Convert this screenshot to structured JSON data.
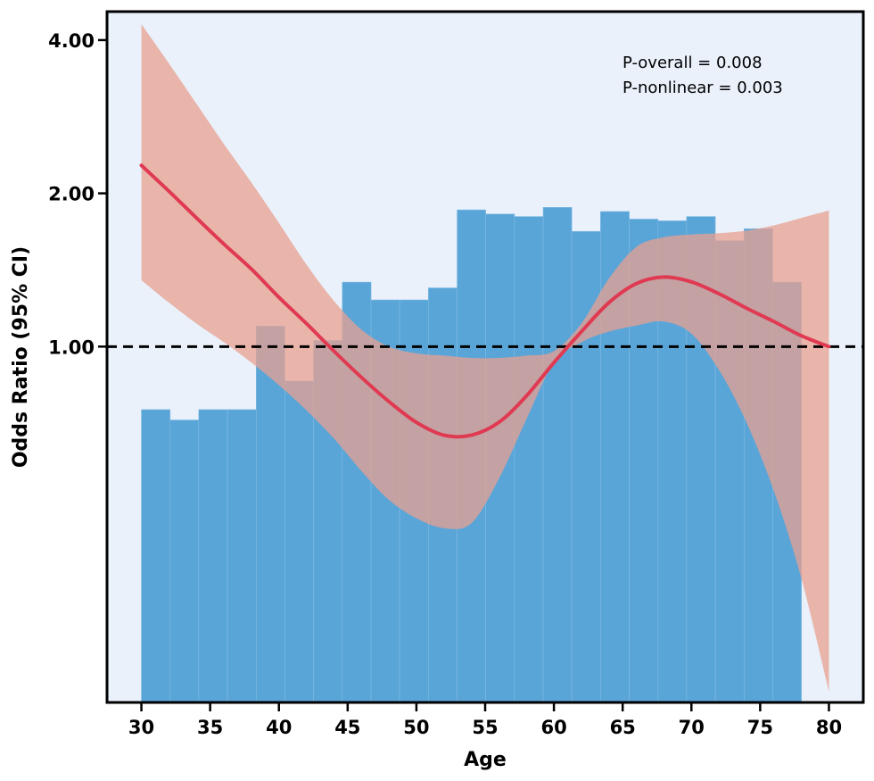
{
  "chart_data": {
    "type": "bar",
    "title": "",
    "xlabel": "Age",
    "ylabel": "Odds Ratio (95% CI)",
    "y_scale": "log",
    "xlim": [
      27.5,
      82.5
    ],
    "ylim": [
      0.2,
      4.55
    ],
    "x_ticks": [
      30,
      35,
      40,
      45,
      50,
      55,
      60,
      65,
      70,
      75,
      80
    ],
    "x_tick_labels": [
      "30",
      "35",
      "40",
      "45",
      "50",
      "55",
      "60",
      "65",
      "70",
      "75",
      "80"
    ],
    "y_ticks": [
      1,
      2,
      4
    ],
    "y_tick_labels": [
      "1.00",
      "2.00",
      "4.00"
    ],
    "reference_line": {
      "y": 1.0,
      "style": "dashed"
    },
    "annotations": [
      "P-overall = 0.008",
      "P-nonlinear = 0.003"
    ],
    "annotation_position": "top-right",
    "grid": false,
    "colors": {
      "histogram": "#5aa5d8",
      "curve": "#e03a52",
      "ci_band": "#e8a090",
      "background": "#eaf1fb",
      "reference": "#000000"
    },
    "histogram": {
      "bin_edges": [
        30.0,
        32.09,
        34.17,
        36.26,
        38.35,
        40.43,
        42.52,
        44.61,
        46.7,
        48.78,
        50.87,
        52.96,
        55.04,
        57.13,
        59.22,
        61.3,
        63.39,
        65.48,
        67.57,
        69.65,
        71.74,
        73.83,
        75.91,
        78.0
      ],
      "counts": [
        8,
        7.5,
        8,
        8,
        13,
        9.5,
        12,
        16.5,
        15,
        15,
        16,
        24,
        23.5,
        23.2,
        24.3,
        21.5,
        23.8,
        22.9,
        22.7,
        23.2,
        20.5,
        21.8,
        16.5
      ],
      "count_at_baseline": 0,
      "baseline_or": 0.2,
      "or_per_count": 0.069
    },
    "series": [
      {
        "name": "",
        "role": "estimate",
        "x": [
          30,
          32,
          34,
          36,
          38,
          40,
          42,
          44,
          46,
          48,
          50,
          52,
          54,
          56,
          58,
          60,
          62,
          64,
          66,
          68,
          70,
          72,
          74,
          76,
          78,
          80
        ],
        "y": [
          2.27,
          2.02,
          1.79,
          1.59,
          1.42,
          1.25,
          1.11,
          0.98,
          0.87,
          0.78,
          0.71,
          0.67,
          0.67,
          0.71,
          0.8,
          0.93,
          1.07,
          1.22,
          1.33,
          1.37,
          1.34,
          1.27,
          1.19,
          1.12,
          1.05,
          1.0
        ]
      },
      {
        "name": "",
        "role": "ci_lower",
        "x": [
          30,
          32,
          34,
          36,
          38,
          40,
          42,
          44,
          46,
          48,
          50,
          52,
          54,
          56,
          58,
          60,
          62,
          64,
          66,
          68,
          70,
          72,
          74,
          76,
          78,
          80
        ],
        "y": [
          1.35,
          1.22,
          1.11,
          1.02,
          0.93,
          0.84,
          0.75,
          0.66,
          0.57,
          0.5,
          0.46,
          0.44,
          0.45,
          0.55,
          0.72,
          0.93,
          1.02,
          1.07,
          1.1,
          1.12,
          1.06,
          0.9,
          0.71,
          0.52,
          0.35,
          0.21
        ]
      },
      {
        "name": "",
        "role": "ci_upper",
        "x": [
          30,
          32,
          34,
          36,
          38,
          40,
          42,
          44,
          46,
          48,
          50,
          52,
          54,
          56,
          58,
          60,
          62,
          64,
          66,
          68,
          70,
          72,
          74,
          76,
          78,
          80
        ],
        "y": [
          4.3,
          3.6,
          3.0,
          2.5,
          2.1,
          1.75,
          1.45,
          1.23,
          1.08,
          1.0,
          0.97,
          0.96,
          0.95,
          0.95,
          0.96,
          0.98,
          1.11,
          1.36,
          1.57,
          1.64,
          1.66,
          1.67,
          1.69,
          1.73,
          1.79,
          1.85
        ]
      }
    ]
  }
}
